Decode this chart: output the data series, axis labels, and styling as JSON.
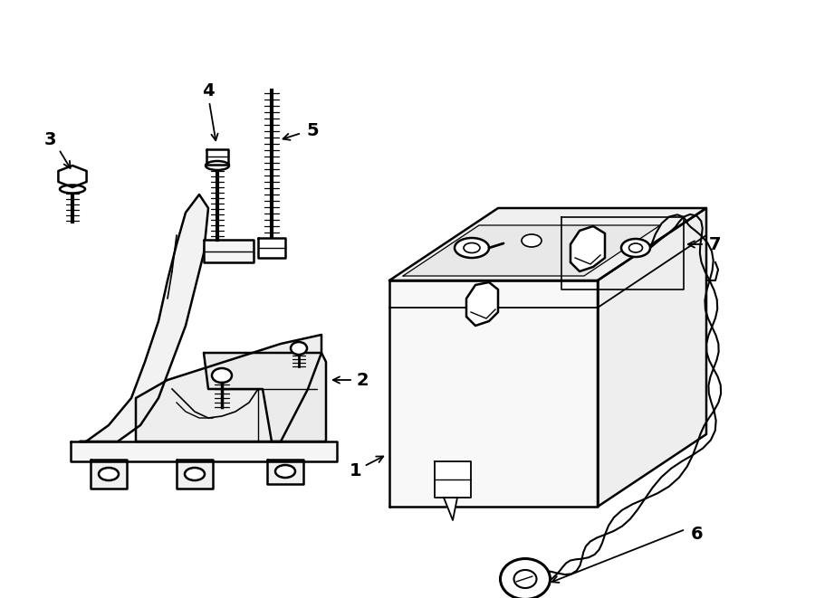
{
  "background_color": "#ffffff",
  "line_color": "#000000",
  "fig_width": 9.0,
  "fig_height": 6.61,
  "dpi": 100,
  "bracket_color": "#f0f0f0",
  "battery_color": "#f8f8f8"
}
